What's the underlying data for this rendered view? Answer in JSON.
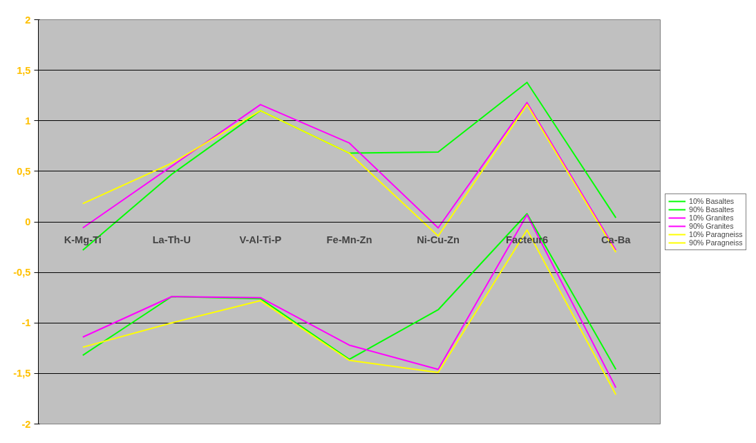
{
  "chart_data": {
    "type": "line",
    "categories": [
      "K-Mg-Ti",
      "La-Th-U",
      "V-Al-Ti-P",
      "Fe-Mn-Zn",
      "Ni-Cu-Zn",
      "Facteur6",
      "Ca-Ba"
    ],
    "series": [
      {
        "name": "10% Basaltes",
        "color": "#00ff00",
        "values": [
          -1.32,
          -0.74,
          -0.76,
          -1.36,
          -0.87,
          0.08,
          -1.46
        ]
      },
      {
        "name": "90% Basaltes",
        "color": "#00ff00",
        "values": [
          -0.28,
          0.47,
          1.1,
          0.68,
          0.69,
          1.38,
          0.04
        ]
      },
      {
        "name": "10% Granites",
        "color": "#ff00ff",
        "values": [
          -1.14,
          -0.74,
          -0.75,
          -1.22,
          -1.46,
          0.07,
          -1.64
        ]
      },
      {
        "name": "90% Granites",
        "color": "#ff00ff",
        "values": [
          -0.06,
          0.55,
          1.16,
          0.78,
          -0.06,
          1.18,
          -0.28
        ]
      },
      {
        "name": "10% Paragneiss",
        "color": "#ffff00",
        "values": [
          -1.24,
          -1.0,
          -0.78,
          -1.37,
          -1.49,
          -0.08,
          -1.71
        ]
      },
      {
        "name": "90% Paragneiss",
        "color": "#ffff00",
        "values": [
          0.18,
          0.58,
          1.1,
          0.68,
          -0.14,
          1.16,
          -0.3
        ]
      }
    ],
    "ylim": [
      -2,
      2
    ],
    "yticks": [
      {
        "value": -2,
        "label": "-2"
      },
      {
        "value": -1.5,
        "label": "-1,5"
      },
      {
        "value": -1,
        "label": "-1"
      },
      {
        "value": -0.5,
        "label": "-0,5"
      },
      0,
      {
        "value": 0.5,
        "label": "0,5"
      },
      1,
      {
        "value": 1.5,
        "label": "1,5"
      },
      2
    ],
    "grid": "y",
    "legend": "right",
    "line_style": "solid"
  }
}
